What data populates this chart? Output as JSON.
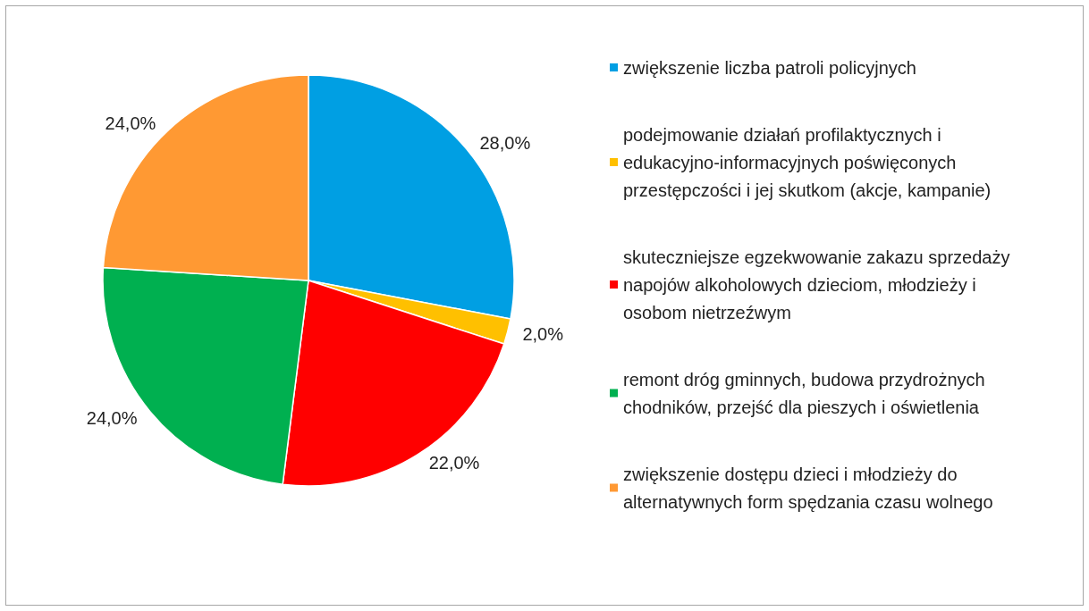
{
  "chart_data": {
    "type": "pie",
    "categories": [
      "zwiększenie liczba patroli policyjnych",
      "podejmowanie działań profilaktycznych i edukacyjno-informacyjnych poświęconych przestępczości i jej skutkom (akcje, kampanie)",
      "skuteczniejsze egzekwowanie zakazu sprzedaży napojów alkoholowych dzieciom, młodzieży i osobom nietrzeźwym",
      "remont dróg gminnych, budowa przydrożnych chodników, przejść dla pieszych i oświetlenia",
      "zwiększenie dostępu dzieci i młodzieży do alternatywnych form spędzania czasu wolnego"
    ],
    "values": [
      28,
      2,
      22,
      24,
      24
    ],
    "value_labels": [
      "28,0%",
      "2,0%",
      "22,0%",
      "24,0%",
      "24,0%"
    ],
    "colors": [
      "#009fe3",
      "#ffc000",
      "#ff0000",
      "#00b050",
      "#ff9933"
    ],
    "legend": "right"
  }
}
